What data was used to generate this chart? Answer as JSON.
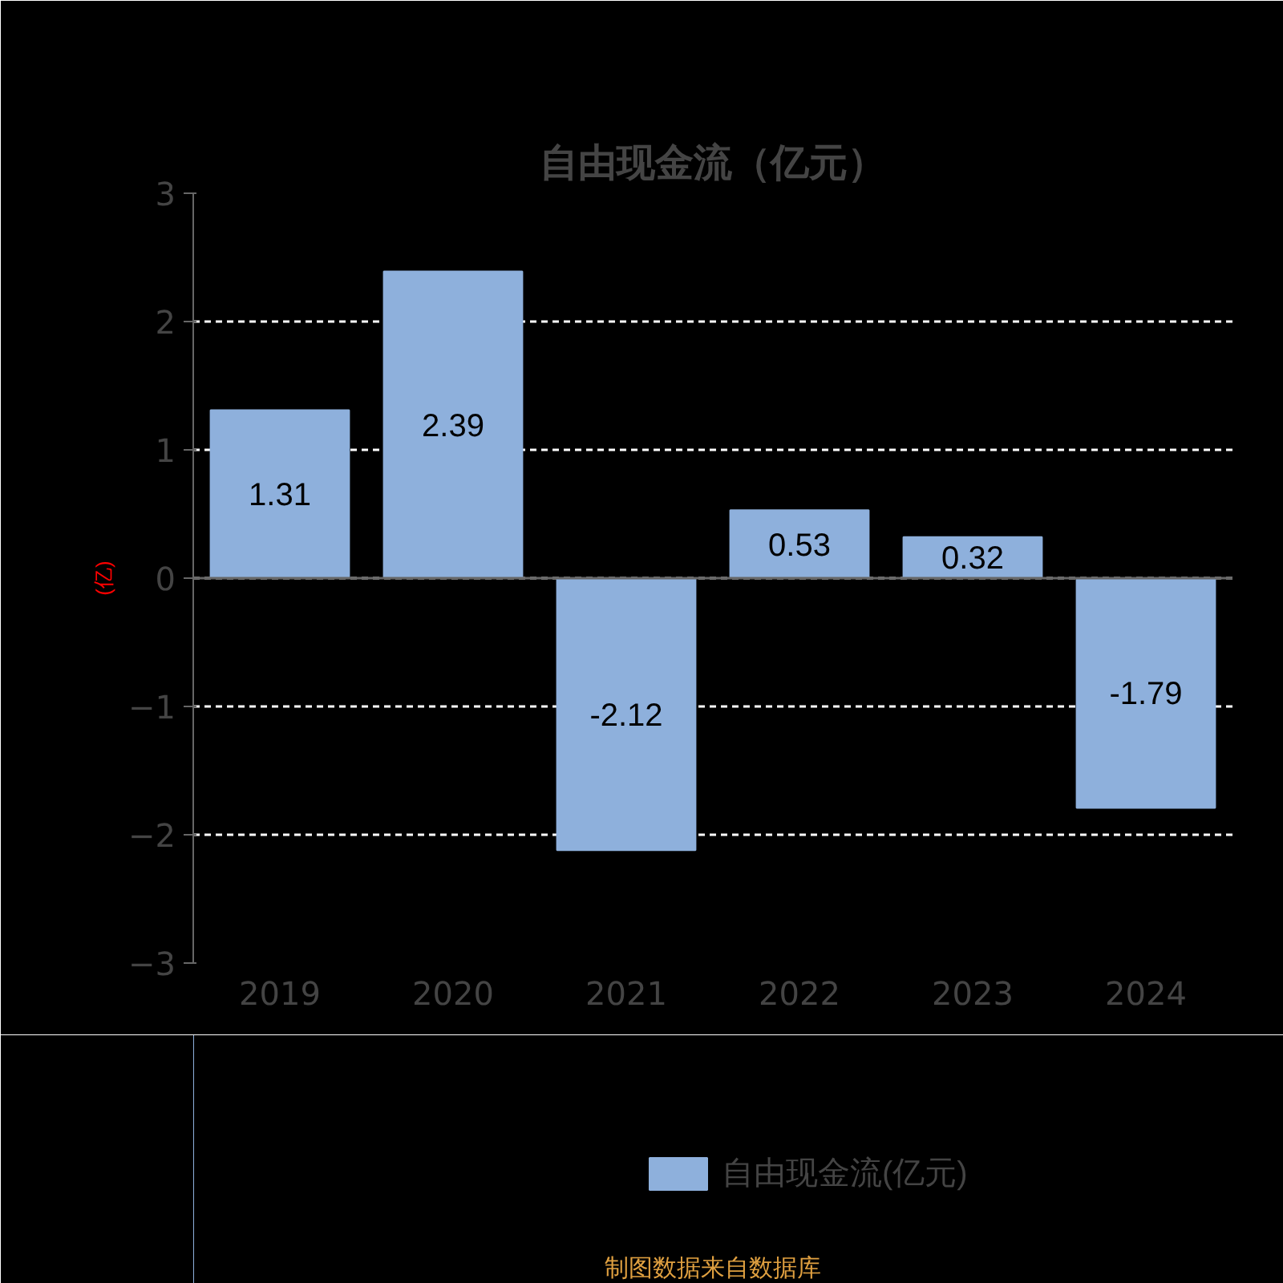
{
  "chart_data": {
    "type": "bar",
    "title": "自由现金流（亿元）",
    "ylabel": "(亿)",
    "categories": [
      "2019",
      "2020",
      "2021",
      "2022",
      "2023",
      "2024"
    ],
    "series": [
      {
        "name": "自由现金流(亿元)",
        "color": "#8eb0dc",
        "values": [
          1.31,
          2.39,
          -2.12,
          0.53,
          0.32,
          -1.79
        ]
      }
    ],
    "ylim": [
      -3,
      3
    ],
    "yticks": [
      -3,
      -2,
      -1,
      0,
      1,
      2,
      3
    ],
    "grid": "y",
    "legend": "bottom",
    "data_labels": true,
    "annotations": [
      "制图数据来自数据库"
    ]
  }
}
